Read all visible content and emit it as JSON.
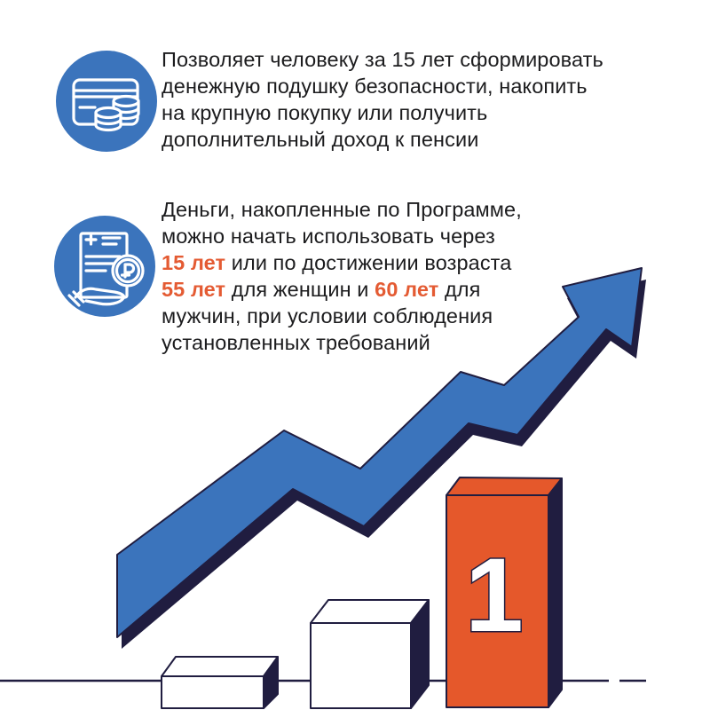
{
  "colors": {
    "blue": "#3b74bc",
    "dark_navy": "#201d40",
    "orange": "#e5582b",
    "orange_text": "#e45b33",
    "text": "#1c1c1e",
    "background": "#ffffff"
  },
  "features": [
    {
      "icon": "card-coins-icon",
      "text": "Позволяет человеку за 15 лет сформировать\nденежную подушку безопасности, накопить\nна крупную покупку или получить\nдополнительный доход к пенсии"
    },
    {
      "icon": "document-ruble-hand-icon",
      "segments": [
        {
          "text": "Деньги, накопленные по Программе,\nможно начать использовать через\n",
          "highlight": false
        },
        {
          "text": "15 лет",
          "highlight": true
        },
        {
          "text": " или по достижении возраста\n",
          "highlight": false
        },
        {
          "text": "55 лет",
          "highlight": true
        },
        {
          "text": " для женщин и ",
          "highlight": false
        },
        {
          "text": "60 лет",
          "highlight": true
        },
        {
          "text": " для\nмужчин, при условии соблюдения\nустановленных требований",
          "highlight": false
        }
      ]
    }
  ],
  "illustration": {
    "type": "growth-arrow-and-podium",
    "podium_rank_label": "1"
  }
}
